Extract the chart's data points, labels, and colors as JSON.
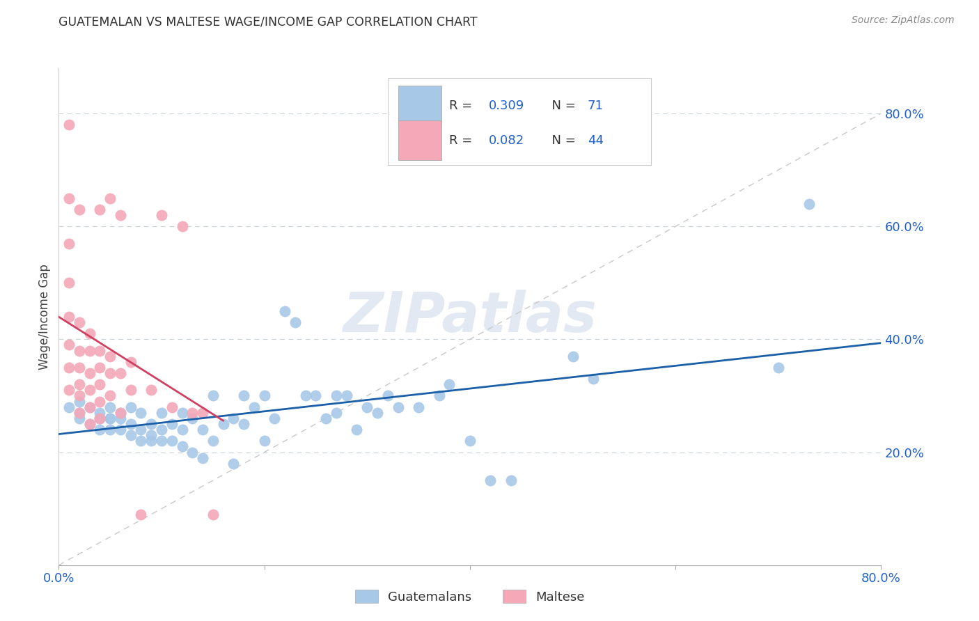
{
  "title": "GUATEMALAN VS MALTESE WAGE/INCOME GAP CORRELATION CHART",
  "source": "Source: ZipAtlas.com",
  "ylabel": "Wage/Income Gap",
  "watermark": "ZIPatlas",
  "legend_label1": "Guatemalans",
  "legend_label2": "Maltese",
  "blue_color": "#a8c8e8",
  "pink_color": "#f4a8b8",
  "line_blue": "#1a5fa8",
  "line_pink": "#d04060",
  "line_dashed_color": "#c8c8c8",
  "text_blue": "#2060c8",
  "xlim": [
    0.0,
    0.8
  ],
  "ylim": [
    0.0,
    0.88
  ],
  "ytick_vals": [
    0.2,
    0.4,
    0.6,
    0.8
  ],
  "ytick_labels": [
    "20.0%",
    "40.0%",
    "60.0%",
    "80.0%"
  ],
  "xtick_vals": [
    0.0,
    0.2,
    0.4,
    0.6,
    0.8
  ],
  "xtick_labels": [
    "0.0%",
    "",
    "",
    "",
    "80.0%"
  ],
  "blue_x": [
    0.01,
    0.02,
    0.02,
    0.02,
    0.03,
    0.03,
    0.04,
    0.04,
    0.04,
    0.05,
    0.05,
    0.05,
    0.05,
    0.06,
    0.06,
    0.06,
    0.07,
    0.07,
    0.07,
    0.08,
    0.08,
    0.08,
    0.09,
    0.09,
    0.09,
    0.1,
    0.1,
    0.1,
    0.11,
    0.11,
    0.12,
    0.12,
    0.12,
    0.13,
    0.13,
    0.14,
    0.14,
    0.15,
    0.15,
    0.16,
    0.17,
    0.17,
    0.18,
    0.18,
    0.19,
    0.2,
    0.2,
    0.21,
    0.22,
    0.23,
    0.24,
    0.25,
    0.26,
    0.27,
    0.27,
    0.28,
    0.29,
    0.3,
    0.31,
    0.32,
    0.33,
    0.35,
    0.37,
    0.38,
    0.4,
    0.42,
    0.44,
    0.5,
    0.52,
    0.7,
    0.73
  ],
  "blue_y": [
    0.28,
    0.27,
    0.29,
    0.26,
    0.25,
    0.28,
    0.27,
    0.24,
    0.26,
    0.26,
    0.24,
    0.26,
    0.28,
    0.24,
    0.26,
    0.27,
    0.23,
    0.25,
    0.28,
    0.22,
    0.24,
    0.27,
    0.22,
    0.25,
    0.23,
    0.22,
    0.24,
    0.27,
    0.22,
    0.25,
    0.21,
    0.24,
    0.27,
    0.2,
    0.26,
    0.19,
    0.24,
    0.22,
    0.3,
    0.25,
    0.18,
    0.26,
    0.25,
    0.3,
    0.28,
    0.22,
    0.3,
    0.26,
    0.45,
    0.43,
    0.3,
    0.3,
    0.26,
    0.3,
    0.27,
    0.3,
    0.24,
    0.28,
    0.27,
    0.3,
    0.28,
    0.28,
    0.3,
    0.32,
    0.22,
    0.15,
    0.15,
    0.37,
    0.33,
    0.35,
    0.64
  ],
  "pink_x": [
    0.01,
    0.01,
    0.01,
    0.01,
    0.01,
    0.01,
    0.01,
    0.01,
    0.02,
    0.02,
    0.02,
    0.02,
    0.02,
    0.02,
    0.03,
    0.03,
    0.03,
    0.03,
    0.03,
    0.03,
    0.04,
    0.04,
    0.04,
    0.04,
    0.04,
    0.05,
    0.05,
    0.05,
    0.06,
    0.06,
    0.07,
    0.07,
    0.08,
    0.09,
    0.1,
    0.11,
    0.12,
    0.13,
    0.14,
    0.15,
    0.02,
    0.04,
    0.05,
    0.06
  ],
  "pink_y": [
    0.78,
    0.65,
    0.57,
    0.5,
    0.44,
    0.39,
    0.35,
    0.31,
    0.43,
    0.38,
    0.35,
    0.32,
    0.3,
    0.27,
    0.41,
    0.38,
    0.34,
    0.31,
    0.28,
    0.25,
    0.38,
    0.35,
    0.32,
    0.29,
    0.26,
    0.37,
    0.34,
    0.3,
    0.34,
    0.27,
    0.36,
    0.31,
    0.09,
    0.31,
    0.62,
    0.28,
    0.6,
    0.27,
    0.27,
    0.09,
    0.63,
    0.63,
    0.65,
    0.62
  ]
}
